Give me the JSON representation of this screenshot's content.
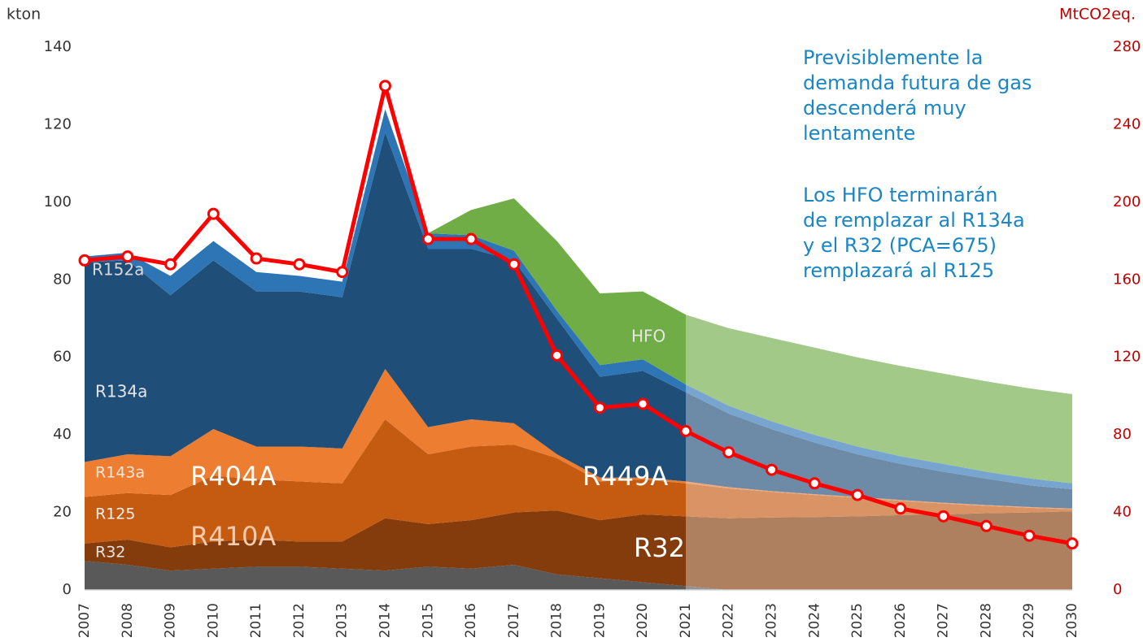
{
  "chart_data": {
    "type": "area",
    "stacked": true,
    "y_axis_label": "kton",
    "y2_axis_label": "MtCO2eq.",
    "categories": [
      "2007",
      "2008",
      "2009",
      "2010",
      "2011",
      "2012",
      "2013",
      "2014",
      "2015",
      "2016",
      "2017",
      "2018",
      "2019",
      "2020",
      "2021",
      "2022",
      "2023",
      "2024",
      "2025",
      "2026",
      "2027",
      "2028",
      "2029",
      "2030"
    ],
    "forecast_start": "2021",
    "ylim": [
      0,
      140
    ],
    "yticks": [
      0,
      20,
      40,
      60,
      80,
      100,
      120,
      140
    ],
    "y2lim": [
      0,
      280
    ],
    "y2ticks": [
      0,
      40,
      80,
      120,
      160,
      200,
      240,
      280
    ],
    "grid": false,
    "series": [
      {
        "color": "#595959",
        "values": [
          7.5,
          6.5,
          5,
          5.5,
          6,
          6,
          5.5,
          5,
          6,
          5.5,
          6.5,
          4,
          3,
          2,
          1,
          0,
          0,
          0,
          0,
          0,
          0,
          0,
          0,
          0
        ]
      },
      {
        "name": "R32",
        "color": "#843c0c",
        "values": [
          4.5,
          6.5,
          6,
          7,
          7,
          6.5,
          7,
          13.5,
          11,
          12.5,
          13.5,
          16.5,
          15,
          17.5,
          18,
          18.5,
          18.7,
          18.8,
          19,
          19.3,
          19.5,
          19.8,
          20,
          20.3
        ]
      },
      {
        "name": "R125",
        "color": "#c55a11",
        "values": [
          12,
          12,
          13.5,
          17,
          15.5,
          15.5,
          15,
          25.5,
          18,
          19,
          17.5,
          13.5,
          10,
          9,
          8.5,
          7.7,
          6.6,
          5.7,
          4.8,
          3.7,
          2.8,
          1.9,
          1.2,
          0.5
        ]
      },
      {
        "name": "R143a",
        "color": "#ed7d31",
        "values": [
          9,
          10,
          10,
          12,
          8.5,
          9,
          9,
          13,
          7,
          7,
          5.5,
          1,
          1,
          0.5,
          0.5,
          0.3,
          0.2,
          0.2,
          0.2,
          0.2,
          0.2,
          0.2,
          0.2,
          0.2
        ]
      },
      {
        "name": "R134a",
        "color": "#1f4e79",
        "values": [
          51.5,
          50,
          41.5,
          43.5,
          40,
          40,
          39,
          61,
          46,
          44,
          42,
          35,
          26,
          27.5,
          23,
          19,
          16,
          13.3,
          11,
          9.3,
          8,
          6.8,
          5.6,
          5
        ]
      },
      {
        "name": "R152a",
        "color": "#2e75b6",
        "values": [
          1.5,
          2,
          5,
          5,
          5,
          4,
          4,
          6,
          4,
          3.5,
          2.5,
          2,
          3,
          3,
          2,
          2,
          2,
          2,
          2,
          2,
          2,
          1.8,
          1.8,
          1.5
        ]
      },
      {
        "name": "HFO",
        "color": "#70ad47",
        "values": [
          0,
          0,
          0,
          0,
          0,
          0,
          0,
          0,
          0,
          6.5,
          13.5,
          18,
          18.5,
          17.5,
          18,
          20,
          21.5,
          22.5,
          23,
          23.3,
          23.3,
          23.3,
          23.2,
          23
        ]
      },
      {
        "type": "line",
        "axis": "y2",
        "color": "#ff0000",
        "values": [
          170,
          172,
          168,
          194,
          171,
          168,
          164,
          260,
          181,
          181,
          168,
          121,
          94,
          96,
          82,
          71,
          62,
          55,
          49,
          42,
          38,
          33,
          28,
          24
        ]
      }
    ],
    "area_labels": [
      "R404A",
      "R410A",
      "R449A",
      "R32"
    ],
    "notes": [
      [
        "Previsiblemente la",
        "demanda futura de gas",
        "descenderá muy",
        "lentamente"
      ],
      [
        "Los HFO terminarán",
        "de remplazar al R134a",
        "y el R32 (PCA=675)",
        "remplazará al R125"
      ]
    ]
  }
}
